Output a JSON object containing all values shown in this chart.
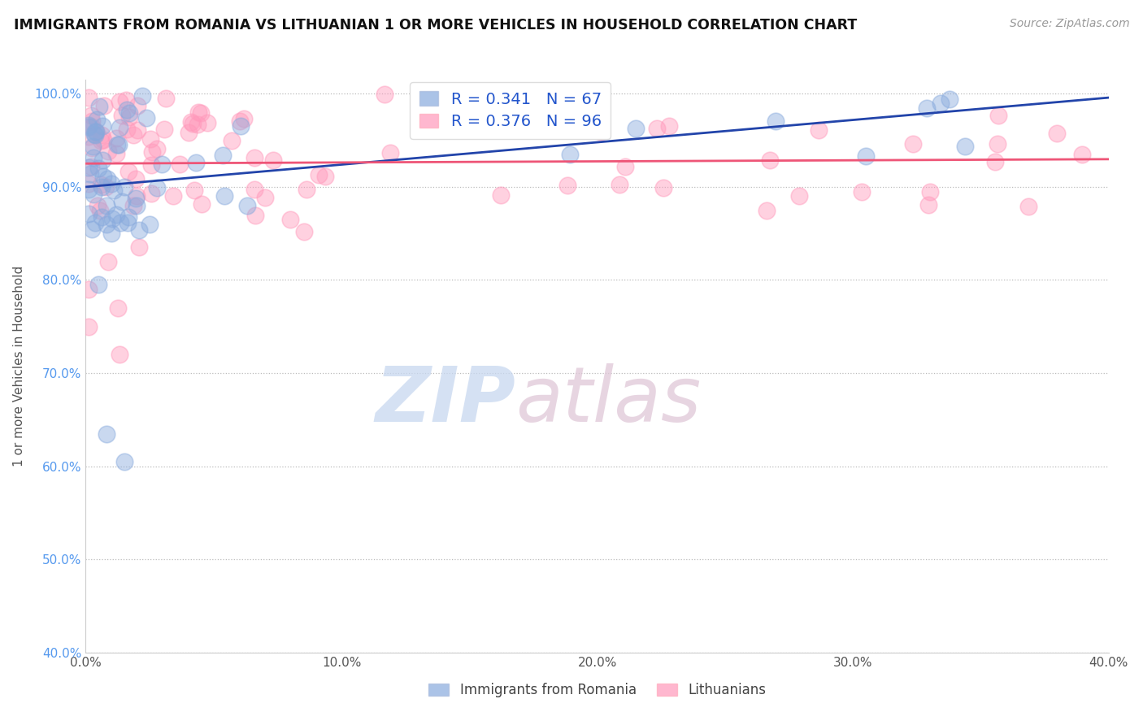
{
  "title": "IMMIGRANTS FROM ROMANIA VS LITHUANIAN 1 OR MORE VEHICLES IN HOUSEHOLD CORRELATION CHART",
  "source": "Source: ZipAtlas.com",
  "ylabel": "1 or more Vehicles in Household",
  "legend_label1": "Immigrants from Romania",
  "legend_label2": "Lithuanians",
  "R1": 0.341,
  "N1": 67,
  "R2": 0.376,
  "N2": 96,
  "xlim": [
    0.0,
    0.4
  ],
  "ylim": [
    0.4,
    1.015
  ],
  "xtick_labels": [
    "0.0%",
    "10.0%",
    "20.0%",
    "30.0%",
    "40.0%"
  ],
  "xtick_vals": [
    0.0,
    0.1,
    0.2,
    0.3,
    0.4
  ],
  "ytick_labels": [
    "100.0%",
    "90.0%",
    "80.0%",
    "70.0%",
    "60.0%",
    "50.0%",
    "40.0%"
  ],
  "ytick_vals": [
    1.0,
    0.9,
    0.8,
    0.7,
    0.6,
    0.5,
    0.4
  ],
  "color1": "#88AADD",
  "color2": "#FF99BB",
  "trendline1_color": "#2244AA",
  "trendline2_color": "#EE5577",
  "watermark_zip": "ZIP",
  "watermark_atlas": "atlas",
  "background_color": "#ffffff"
}
